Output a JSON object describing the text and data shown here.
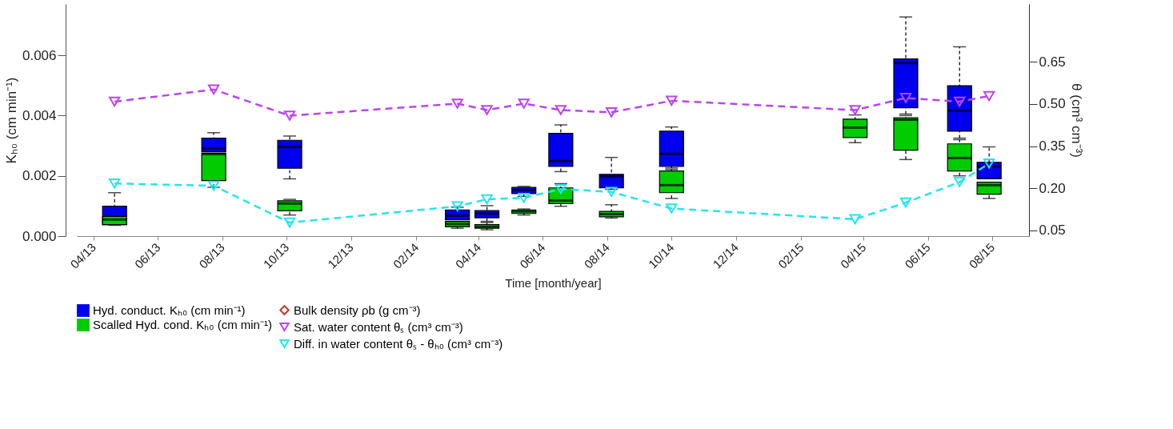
{
  "chart_data": {
    "type": "box",
    "xlabel": "Time [month/year]",
    "ylabel": "Kₕ₀ (cm min⁻¹)",
    "y2label": "θ (cm³ cm⁻³)",
    "xlim": [
      "2013-03-20",
      "2015-09-01"
    ],
    "xticks": [
      {
        "value": "2013-04-01",
        "label": "04/13"
      },
      {
        "value": "2013-06-01",
        "label": "06/13"
      },
      {
        "value": "2013-08-01",
        "label": "08/13"
      },
      {
        "value": "2013-10-01",
        "label": "10/13"
      },
      {
        "value": "2013-12-01",
        "label": "12/13"
      },
      {
        "value": "2014-02-01",
        "label": "02/14"
      },
      {
        "value": "2014-04-01",
        "label": "04/14"
      },
      {
        "value": "2014-06-01",
        "label": "06/14"
      },
      {
        "value": "2014-08-01",
        "label": "08/14"
      },
      {
        "value": "2014-10-01",
        "label": "10/14"
      },
      {
        "value": "2014-12-01",
        "label": "12/14"
      },
      {
        "value": "2015-02-01",
        "label": "02/15"
      },
      {
        "value": "2015-04-01",
        "label": "04/15"
      },
      {
        "value": "2015-06-01",
        "label": "06/15"
      },
      {
        "value": "2015-08-01",
        "label": "08/15"
      }
    ],
    "ylim": [
      0,
      0.0077
    ],
    "yticks": [
      {
        "value": 0,
        "label": "0.000"
      },
      {
        "value": 0.002,
        "label": "0.002"
      },
      {
        "value": 0.004,
        "label": "0.004"
      },
      {
        "value": 0.006,
        "label": "0.006"
      }
    ],
    "y2lim": [
      0.03,
      0.855
    ],
    "y2ticks": [
      {
        "value": 0.05,
        "label": "0.05"
      },
      {
        "value": 0.2,
        "label": "0.20"
      },
      {
        "value": 0.35,
        "label": "0.35"
      },
      {
        "value": 0.5,
        "label": "0.50"
      },
      {
        "value": 0.65,
        "label": "0.65"
      }
    ],
    "grid": false,
    "legend": "bottom",
    "series": [
      {
        "name": "Hyd. conduct. Kₕ₀ (cm min⁻¹)",
        "color": "#0000ee",
        "x": [
          "2013-04-21",
          "2013-07-24",
          "2013-10-04",
          "2014-03-12",
          "2014-04-09",
          "2014-05-14",
          "2014-06-18",
          "2014-08-05",
          "2014-10-01",
          "2015-05-11",
          "2015-07-01",
          "2015-07-29"
        ],
        "boxes": [
          {
            "low": 0.00038,
            "q1": 0.00038,
            "median": 0.00064,
            "q3": 0.00099,
            "high": 0.00144
          },
          {
            "low": 0.0028,
            "q1": 0.0028,
            "median": 0.0029,
            "q3": 0.00325,
            "high": 0.00343
          },
          {
            "low": 0.0019,
            "q1": 0.00225,
            "median": 0.00296,
            "q3": 0.00318,
            "high": 0.00332
          },
          {
            "low": 0.00054,
            "q1": 0.00054,
            "median": 0.00068,
            "q3": 0.00087,
            "high": 0.00096
          },
          {
            "low": 0.00049,
            "q1": 0.00061,
            "median": 0.00075,
            "q3": 0.00085,
            "high": 0.00101
          },
          {
            "low": 0.00132,
            "q1": 0.00141,
            "median": 0.00153,
            "q3": 0.00162,
            "high": 0.00165
          },
          {
            "low": 0.00214,
            "q1": 0.00231,
            "median": 0.00249,
            "q3": 0.00341,
            "high": 0.00369
          },
          {
            "low": 0.00155,
            "q1": 0.0016,
            "median": 0.00198,
            "q3": 0.00205,
            "high": 0.00261
          },
          {
            "low": 0.00226,
            "q1": 0.00231,
            "median": 0.00273,
            "q3": 0.00348,
            "high": 0.00362
          },
          {
            "low": 0.00405,
            "q1": 0.00426,
            "median": 0.00574,
            "q3": 0.00588,
            "high": 0.00727
          },
          {
            "low": 0.00325,
            "q1": 0.00348,
            "median": 0.00416,
            "q3": 0.00499,
            "high": 0.00628
          },
          {
            "low": 0.0019,
            "q1": 0.0019,
            "median": 0.00231,
            "q3": 0.00245,
            "high": 0.00296
          }
        ]
      },
      {
        "name": "Scalled Hyd. cond. Kₕ₀ (cm min⁻¹)",
        "color": "#00cc00",
        "x": [
          "2013-04-21",
          "2013-07-24",
          "2013-10-04",
          "2014-03-12",
          "2014-04-09",
          "2014-05-14",
          "2014-06-18",
          "2014-08-05",
          "2014-10-01",
          "2015-03-24",
          "2015-05-11",
          "2015-07-01",
          "2015-07-29"
        ],
        "boxes": [
          {
            "low": 0.00036,
            "q1": 0.00038,
            "median": 0.00055,
            "q3": 0.00065,
            "high": 0.00065
          },
          {
            "low": 0.00162,
            "q1": 0.00184,
            "median": 0.00272,
            "q3": 0.00275,
            "high": 0.00275
          },
          {
            "low": 0.0007,
            "q1": 0.00084,
            "median": 0.00108,
            "q3": 0.00117,
            "high": 0.00122
          },
          {
            "low": 0.00026,
            "q1": 0.00031,
            "median": 0.0004,
            "q3": 0.00049,
            "high": 0.00049
          },
          {
            "low": 0.00021,
            "q1": 0.00026,
            "median": 0.00031,
            "q3": 0.00038,
            "high": 0.00045
          },
          {
            "low": 0.0007,
            "q1": 0.00075,
            "median": 0.00082,
            "q3": 0.00087,
            "high": 0.0009
          },
          {
            "low": 0.00099,
            "q1": 0.00108,
            "median": 0.00118,
            "q3": 0.0016,
            "high": 0.00174
          },
          {
            "low": 0.0006,
            "q1": 0.00064,
            "median": 0.00073,
            "q3": 0.00082,
            "high": 0.00104
          },
          {
            "low": 0.00125,
            "q1": 0.00144,
            "median": 0.00169,
            "q3": 0.00216,
            "high": 0.00221
          },
          {
            "low": 0.0031,
            "q1": 0.00327,
            "median": 0.0036,
            "q3": 0.00388,
            "high": 0.00402
          },
          {
            "low": 0.00254,
            "q1": 0.00285,
            "median": 0.00386,
            "q3": 0.00393,
            "high": 0.004
          },
          {
            "low": 0.002,
            "q1": 0.00216,
            "median": 0.00259,
            "q3": 0.00306,
            "high": 0.0032
          },
          {
            "low": 0.00125,
            "q1": 0.00139,
            "median": 0.00169,
            "q3": 0.00179,
            "high": 0.00179
          }
        ]
      },
      {
        "type": "line",
        "axis": "y2",
        "name": "Bulk density ρb (g cm⁻³)",
        "color": "#c0392b",
        "marker": "diamond",
        "line_style": "solid"
      },
      {
        "type": "line",
        "axis": "y2",
        "name": "Sat. water content θₛ (cm³ cm⁻³)",
        "color": "#bb44ee",
        "marker": "triangle",
        "line_style": "dashed",
        "x": [
          "2013-04-21",
          "2013-07-24",
          "2013-10-04",
          "2014-03-12",
          "2014-04-09",
          "2014-05-14",
          "2014-06-18",
          "2014-08-05",
          "2014-10-01",
          "2015-03-24",
          "2015-05-11",
          "2015-07-01",
          "2015-07-29"
        ],
        "values": [
          0.508,
          0.551,
          0.458,
          0.501,
          0.478,
          0.501,
          0.478,
          0.47,
          0.511,
          0.478,
          0.521,
          0.508,
          0.528
        ]
      },
      {
        "type": "line",
        "axis": "y2",
        "name": "Diff. in water content θₛ - θₕ₀ (cm³ cm⁻³)",
        "color": "#22e5ee",
        "marker": "triangle",
        "line_style": "dashed",
        "x": [
          "2013-04-21",
          "2013-07-24",
          "2013-10-04",
          "2014-03-12",
          "2014-04-09",
          "2014-05-14",
          "2014-06-18",
          "2014-08-05",
          "2014-10-01",
          "2015-03-24",
          "2015-05-11",
          "2015-07-01",
          "2015-07-29"
        ],
        "values": [
          0.217,
          0.209,
          0.078,
          0.136,
          0.161,
          0.166,
          0.197,
          0.187,
          0.128,
          0.09,
          0.149,
          0.222,
          0.288
        ]
      }
    ]
  }
}
